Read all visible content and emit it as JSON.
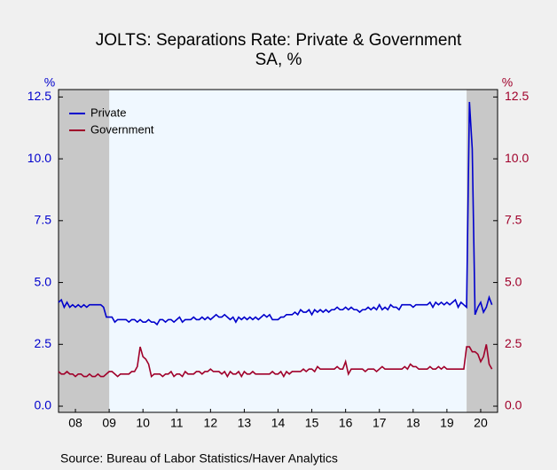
{
  "chart_data": {
    "type": "line",
    "title": "JOLTS: Separations Rate: Private & Government",
    "subtitle": "SA, %",
    "y_label": "%",
    "y2_label": "%",
    "source": "Source:  Bureau of Labor Statistics/Haver Analytics",
    "xlim": [
      2008,
      2021
    ],
    "xticks": [
      {
        "value": 2008.5,
        "label": "08"
      },
      {
        "value": 2009.5,
        "label": "09"
      },
      {
        "value": 2010.5,
        "label": "10"
      },
      {
        "value": 2011.5,
        "label": "11"
      },
      {
        "value": 2012.5,
        "label": "12"
      },
      {
        "value": 2013.5,
        "label": "13"
      },
      {
        "value": 2014.5,
        "label": "14"
      },
      {
        "value": 2015.5,
        "label": "15"
      },
      {
        "value": 2016.5,
        "label": "16"
      },
      {
        "value": 2017.5,
        "label": "17"
      },
      {
        "value": 2018.5,
        "label": "18"
      },
      {
        "value": 2019.5,
        "label": "19"
      },
      {
        "value": 2020.5,
        "label": "20"
      }
    ],
    "ylim": [
      -0.25,
      12.8
    ],
    "yticks": [
      {
        "value": 0,
        "label": "0.0"
      },
      {
        "value": 2.5,
        "label": "2.5"
      },
      {
        "value": 5,
        "label": "5.0"
      },
      {
        "value": 7.5,
        "label": "7.5"
      },
      {
        "value": 10,
        "label": "10.0"
      },
      {
        "value": 12.5,
        "label": "12.5"
      }
    ],
    "y2lim": [
      -0.25,
      12.8
    ],
    "y2ticks": [
      {
        "value": 0,
        "label": "0.0"
      },
      {
        "value": 2.5,
        "label": "2.5"
      },
      {
        "value": 5,
        "label": "5.0"
      },
      {
        "value": 7.5,
        "label": "7.5"
      },
      {
        "value": 10,
        "label": "10.0"
      },
      {
        "value": 12.5,
        "label": "12.5"
      }
    ],
    "recessions": [
      [
        2008,
        2009.5
      ],
      [
        2020.083,
        2021
      ]
    ],
    "recession_color": "#c8c8c8",
    "legend": "top-left",
    "x": [
      2008.0,
      2008.083,
      2008.167,
      2008.25,
      2008.333,
      2008.417,
      2008.5,
      2008.583,
      2008.667,
      2008.75,
      2008.833,
      2008.917,
      2009.0,
      2009.083,
      2009.167,
      2009.25,
      2009.333,
      2009.417,
      2009.5,
      2009.583,
      2009.667,
      2009.75,
      2009.833,
      2009.917,
      2010.0,
      2010.083,
      2010.167,
      2010.25,
      2010.333,
      2010.417,
      2010.5,
      2010.583,
      2010.667,
      2010.75,
      2010.833,
      2010.917,
      2011.0,
      2011.083,
      2011.167,
      2011.25,
      2011.333,
      2011.417,
      2011.5,
      2011.583,
      2011.667,
      2011.75,
      2011.833,
      2011.917,
      2012.0,
      2012.083,
      2012.167,
      2012.25,
      2012.333,
      2012.417,
      2012.5,
      2012.583,
      2012.667,
      2012.75,
      2012.833,
      2012.917,
      2013.0,
      2013.083,
      2013.167,
      2013.25,
      2013.333,
      2013.417,
      2013.5,
      2013.583,
      2013.667,
      2013.75,
      2013.833,
      2013.917,
      2014.0,
      2014.083,
      2014.167,
      2014.25,
      2014.333,
      2014.417,
      2014.5,
      2014.583,
      2014.667,
      2014.75,
      2014.833,
      2014.917,
      2015.0,
      2015.083,
      2015.167,
      2015.25,
      2015.333,
      2015.417,
      2015.5,
      2015.583,
      2015.667,
      2015.75,
      2015.833,
      2015.917,
      2016.0,
      2016.083,
      2016.167,
      2016.25,
      2016.333,
      2016.417,
      2016.5,
      2016.583,
      2016.667,
      2016.75,
      2016.833,
      2016.917,
      2017.0,
      2017.083,
      2017.167,
      2017.25,
      2017.333,
      2017.417,
      2017.5,
      2017.583,
      2017.667,
      2017.75,
      2017.833,
      2017.917,
      2018.0,
      2018.083,
      2018.167,
      2018.25,
      2018.333,
      2018.417,
      2018.5,
      2018.583,
      2018.667,
      2018.75,
      2018.833,
      2018.917,
      2019.0,
      2019.083,
      2019.167,
      2019.25,
      2019.333,
      2019.417,
      2019.5,
      2019.583,
      2019.667,
      2019.75,
      2019.833,
      2019.917,
      2020.0,
      2020.083,
      2020.167,
      2020.25,
      2020.333,
      2020.417,
      2020.5,
      2020.583,
      2020.667,
      2020.75,
      2020.833
    ],
    "series": [
      {
        "name": "Private",
        "color": "#0000cc",
        "values": [
          4.2,
          4.3,
          4.0,
          4.2,
          4.0,
          4.1,
          4.0,
          4.1,
          4.0,
          4.1,
          4.0,
          4.1,
          4.1,
          4.1,
          4.1,
          4.1,
          4.0,
          3.6,
          3.6,
          3.6,
          3.4,
          3.5,
          3.5,
          3.5,
          3.5,
          3.4,
          3.5,
          3.5,
          3.4,
          3.5,
          3.4,
          3.4,
          3.5,
          3.4,
          3.4,
          3.3,
          3.5,
          3.5,
          3.4,
          3.5,
          3.5,
          3.4,
          3.5,
          3.6,
          3.4,
          3.5,
          3.5,
          3.5,
          3.6,
          3.5,
          3.5,
          3.6,
          3.5,
          3.6,
          3.5,
          3.6,
          3.7,
          3.6,
          3.6,
          3.7,
          3.6,
          3.5,
          3.6,
          3.4,
          3.6,
          3.5,
          3.6,
          3.5,
          3.6,
          3.5,
          3.6,
          3.5,
          3.6,
          3.7,
          3.6,
          3.7,
          3.5,
          3.5,
          3.5,
          3.6,
          3.6,
          3.7,
          3.7,
          3.7,
          3.8,
          3.7,
          3.9,
          3.8,
          3.8,
          3.9,
          3.7,
          3.9,
          3.8,
          3.9,
          3.8,
          3.9,
          3.8,
          3.9,
          3.9,
          4.0,
          3.9,
          3.9,
          4.0,
          3.9,
          4.0,
          3.9,
          3.9,
          3.8,
          3.9,
          3.9,
          4.0,
          3.9,
          4.0,
          3.9,
          4.1,
          3.9,
          4.0,
          3.9,
          4.1,
          4.0,
          4.0,
          3.9,
          4.1,
          4.1,
          4.1,
          4.1,
          4.0,
          4.1,
          4.1,
          4.1,
          4.1,
          4.1,
          4.2,
          4.0,
          4.2,
          4.1,
          4.2,
          4.1,
          4.2,
          4.1,
          4.2,
          4.3,
          4.0,
          4.2,
          4.1,
          4.0,
          12.3,
          10.4,
          3.7,
          4.0,
          4.2,
          3.8,
          4.0,
          4.4,
          4.1
        ]
      },
      {
        "name": "Government",
        "color": "#a0002a",
        "axis": "y2",
        "values": [
          1.4,
          1.3,
          1.3,
          1.4,
          1.3,
          1.3,
          1.2,
          1.3,
          1.3,
          1.2,
          1.2,
          1.3,
          1.2,
          1.2,
          1.3,
          1.2,
          1.2,
          1.3,
          1.4,
          1.4,
          1.3,
          1.2,
          1.3,
          1.3,
          1.3,
          1.3,
          1.4,
          1.4,
          1.6,
          2.4,
          2.0,
          1.9,
          1.7,
          1.2,
          1.3,
          1.3,
          1.3,
          1.2,
          1.3,
          1.3,
          1.4,
          1.2,
          1.3,
          1.3,
          1.2,
          1.4,
          1.3,
          1.3,
          1.3,
          1.4,
          1.4,
          1.3,
          1.4,
          1.4,
          1.5,
          1.4,
          1.4,
          1.4,
          1.3,
          1.4,
          1.2,
          1.4,
          1.3,
          1.3,
          1.4,
          1.2,
          1.4,
          1.3,
          1.3,
          1.4,
          1.3,
          1.3,
          1.3,
          1.3,
          1.3,
          1.3,
          1.4,
          1.3,
          1.3,
          1.4,
          1.2,
          1.4,
          1.3,
          1.4,
          1.4,
          1.4,
          1.4,
          1.5,
          1.4,
          1.5,
          1.5,
          1.4,
          1.6,
          1.5,
          1.5,
          1.5,
          1.5,
          1.5,
          1.5,
          1.6,
          1.5,
          1.5,
          1.8,
          1.3,
          1.5,
          1.5,
          1.5,
          1.5,
          1.5,
          1.4,
          1.5,
          1.5,
          1.5,
          1.4,
          1.5,
          1.6,
          1.5,
          1.5,
          1.5,
          1.5,
          1.5,
          1.5,
          1.5,
          1.6,
          1.5,
          1.7,
          1.6,
          1.6,
          1.5,
          1.5,
          1.5,
          1.5,
          1.6,
          1.5,
          1.5,
          1.6,
          1.5,
          1.6,
          1.5,
          1.5,
          1.5,
          1.5,
          1.5,
          1.5,
          1.5,
          2.4,
          2.4,
          2.2,
          2.2,
          2.1,
          1.8,
          2.0,
          2.5,
          1.7,
          1.5
        ]
      }
    ]
  }
}
